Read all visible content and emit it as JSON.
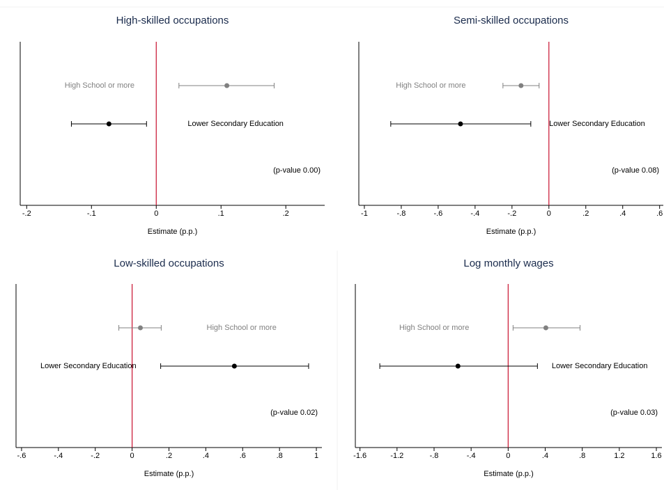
{
  "chart_data": [
    {
      "type": "errorbar",
      "title": "High-skilled occupations",
      "xlabel": "Estimate (p.p.)",
      "annotation": "(p-value 0.00)",
      "xlim": [
        -0.21,
        0.26
      ],
      "xticks": [
        {
          "value": -0.2,
          "label": "-.2"
        },
        {
          "value": -0.1,
          "label": "-.1"
        },
        0,
        {
          "value": 0.1,
          "label": ".1"
        },
        {
          "value": 0.2,
          "label": ".2"
        }
      ],
      "xline": 0,
      "xline_color": "#c8102e",
      "series": [
        {
          "name": "High School or more",
          "color": "#808080",
          "values": [
            0.109
          ],
          "ci_low": [
            0.035
          ],
          "ci_high": [
            0.182
          ]
        },
        {
          "name": "Lower Secondary Education",
          "color": "#000000",
          "values": [
            -0.073
          ],
          "ci_low": [
            -0.131
          ],
          "ci_high": [
            -0.015
          ]
        }
      ]
    },
    {
      "type": "errorbar",
      "title": "Semi-skilled occupations",
      "xlabel": "Estimate (p.p.)",
      "annotation": "(p-value 0.08)",
      "xlim": [
        -1.03,
        0.62
      ],
      "xticks": [
        -1,
        {
          "value": -0.8,
          "label": "-.8"
        },
        {
          "value": -0.6,
          "label": "-.6"
        },
        {
          "value": -0.4,
          "label": "-.4"
        },
        {
          "value": -0.2,
          "label": "-.2"
        },
        0,
        {
          "value": 0.2,
          "label": ".2"
        },
        {
          "value": 0.4,
          "label": ".4"
        },
        {
          "value": 0.6,
          "label": ".6"
        }
      ],
      "xline": 0,
      "xline_color": "#c8102e",
      "series": [
        {
          "name": "High School or more",
          "color": "#808080",
          "values": [
            -0.151
          ],
          "ci_low": [
            -0.249
          ],
          "ci_high": [
            -0.053
          ]
        },
        {
          "name": "Lower Secondary Education",
          "color": "#000000",
          "values": [
            -0.479
          ],
          "ci_low": [
            -0.857
          ],
          "ci_high": [
            -0.098
          ]
        }
      ]
    },
    {
      "type": "errorbar",
      "title": "Low-skilled occupations",
      "xlabel": "Estimate (p.p.)",
      "annotation": "(p-value 0.02)",
      "xlim": [
        -0.63,
        1.03
      ],
      "xticks": [
        {
          "value": -0.6,
          "label": "-.6"
        },
        {
          "value": -0.4,
          "label": "-.4"
        },
        {
          "value": -0.2,
          "label": "-.2"
        },
        0,
        {
          "value": 0.2,
          "label": ".2"
        },
        {
          "value": 0.4,
          "label": ".4"
        },
        {
          "value": 0.6,
          "label": ".6"
        },
        {
          "value": 0.8,
          "label": ".8"
        },
        1
      ],
      "xline": 0,
      "xline_color": "#c8102e",
      "series": [
        {
          "name": "High School or more",
          "color": "#808080",
          "values": [
            0.045
          ],
          "ci_low": [
            -0.072
          ],
          "ci_high": [
            0.158
          ]
        },
        {
          "name": "Lower Secondary Education",
          "color": "#000000",
          "values": [
            0.555
          ],
          "ci_low": [
            0.155
          ],
          "ci_high": [
            0.958
          ]
        }
      ]
    },
    {
      "type": "errorbar",
      "title": "Log monthly wages",
      "xlabel": "Estimate (p.p.)",
      "annotation": "(p-value 0.03)",
      "xlim": [
        -1.65,
        1.66
      ],
      "xticks": [
        -1.6,
        -1.2,
        {
          "value": -0.8,
          "label": "-.8"
        },
        {
          "value": -0.4,
          "label": "-.4"
        },
        0,
        {
          "value": 0.4,
          "label": ".4"
        },
        {
          "value": 0.8,
          "label": ".8"
        },
        1.2,
        1.6
      ],
      "xline": 0,
      "xline_color": "#c8102e",
      "series": [
        {
          "name": "High School or more",
          "color": "#808080",
          "values": [
            0.407
          ],
          "ci_low": [
            0.053
          ],
          "ci_high": [
            0.776
          ]
        },
        {
          "name": "Lower Secondary Education",
          "color": "#000000",
          "values": [
            -0.542
          ],
          "ci_low": [
            -1.386
          ],
          "ci_high": [
            0.316
          ]
        }
      ]
    }
  ]
}
